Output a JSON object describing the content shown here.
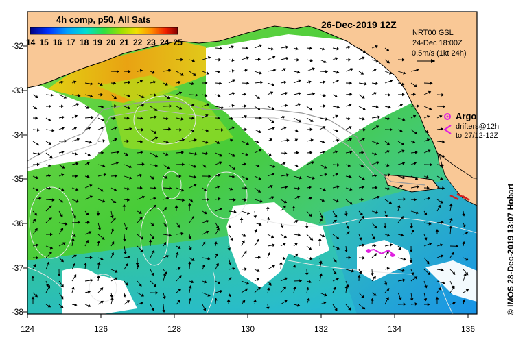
{
  "title": "4h comp, p50, All Sats",
  "date": "26-Dec-2019 12Z",
  "current_info": {
    "model": "NRT00 GSL",
    "time": "24-Dec 18:00Z",
    "scale": "0.5m/s (1kt 24h)"
  },
  "legend": {
    "argo_label": "Argo",
    "drifters_label": "drifters@12h",
    "drifters_period": "to 27/12-12Z"
  },
  "credit": "© IMOS 28-Dec-2019 13:07 Hobart",
  "colorbar": {
    "ticks": [
      "14",
      "15",
      "16",
      "17",
      "18",
      "19",
      "20",
      "21",
      "22",
      "23",
      "24",
      "25"
    ]
  },
  "axes": {
    "y_ticks": [
      "-32",
      "-33",
      "-34",
      "-35",
      "-36",
      "-37",
      "-38"
    ],
    "x_ticks": [
      "124",
      "126",
      "128",
      "130",
      "132",
      "134",
      "136"
    ]
  },
  "colors": {
    "land": "#F9C896",
    "cloud": "#FFFFFF",
    "argo": "#E020E0",
    "drifter_red": "#D02020",
    "frame": "#000000"
  }
}
